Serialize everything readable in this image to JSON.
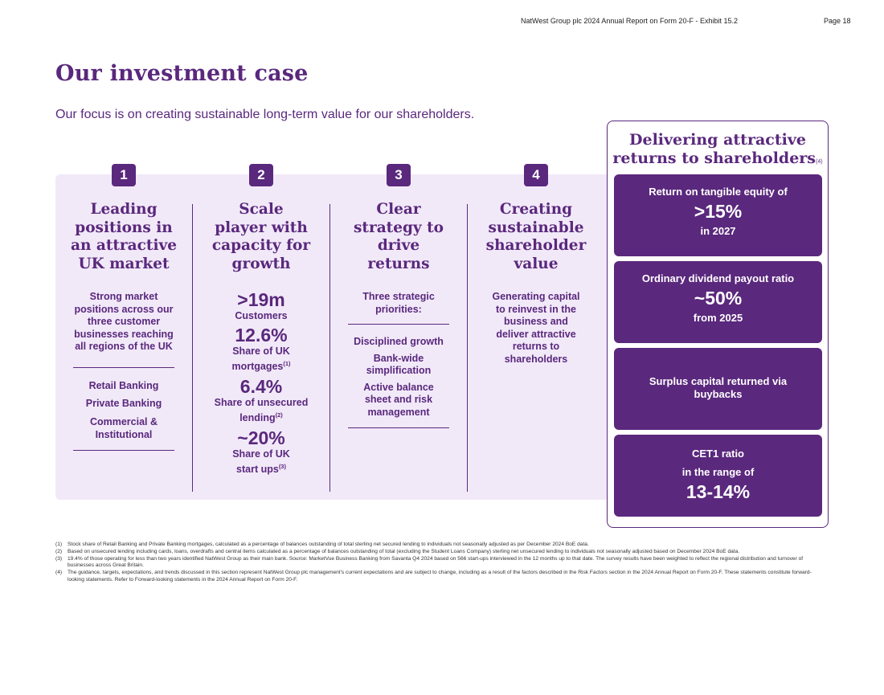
{
  "header": {
    "doc_title": "NatWest Group plc 2024 Annual Report on Form 20-F - Exhibit 15.2",
    "page": "Page 18"
  },
  "title": "Our investment case",
  "subtitle": "Our focus is on creating sustainable long-term value for our shareholders.",
  "columns": [
    {
      "number": "1",
      "title": [
        "Leading",
        "positions in",
        "an attractive",
        "UK market"
      ],
      "desc": [
        "Strong market",
        "positions across our",
        "three customer",
        "businesses reaching",
        "all regions of the UK"
      ],
      "items": [
        "Retail Banking",
        "Private Banking",
        "Commercial &",
        "Institutional"
      ]
    },
    {
      "number": "2",
      "title": [
        "Scale",
        "player with",
        "capacity for",
        "growth"
      ],
      "stats": [
        {
          "value": ">19m",
          "label": "Customers",
          "label2": "",
          "sup": ""
        },
        {
          "value": "12.6%",
          "label": "Share of UK",
          "label2": "mortgages",
          "sup": "(1)"
        },
        {
          "value": "6.4%",
          "label": "Share of unsecured",
          "label2": "lending",
          "sup": "(2)"
        },
        {
          "value": "~20%",
          "label": "Share of UK",
          "label2": "start ups",
          "sup": "(3)"
        }
      ]
    },
    {
      "number": "3",
      "title": [
        "Clear",
        "strategy to",
        "drive",
        "returns"
      ],
      "desc": [
        "Three strategic",
        "priorities:"
      ],
      "items": [
        "Disciplined growth",
        "Bank-wide",
        "simplification",
        "Active balance",
        "sheet and risk",
        "management"
      ]
    },
    {
      "number": "4",
      "title": [
        "Creating",
        "sustainable",
        "shareholder",
        "value"
      ],
      "desc": [
        "Generating capital",
        "to reinvest in the",
        "business and",
        "deliver attractive",
        "returns to",
        "shareholders"
      ]
    }
  ],
  "returns": {
    "title": [
      "Delivering attractive",
      "returns to shareholders"
    ],
    "title_fn": "(4)",
    "cards": [
      {
        "line1": "Return on tangible equity of",
        "big": ">15%",
        "line2": "in 2027"
      },
      {
        "line1": "Ordinary dividend payout ratio",
        "big": "~50%",
        "line2": "from 2025"
      },
      {
        "line1": "Surplus capital returned via",
        "line2": "buybacks"
      },
      {
        "line1": "CET1 ratio",
        "line2": "in the range of",
        "big": "13-14%"
      }
    ]
  },
  "footnotes": [
    {
      "n": "(1)",
      "text": "Stock share of Retail Banking and Private Banking mortgages, calculated as a percentage of balances outstanding of total sterling net secured lending to individuals not seasonally adjusted as per December 2024 BoE data."
    },
    {
      "n": "(2)",
      "text": "Based on unsecured lending including cards, loans, overdrafts and central items calculated as a percentage of balances outstanding of total (excluding the Student Loans Company) sterling net unsecured lending to individuals not seasonally adjusted based on December 2024 BoE data."
    },
    {
      "n": "(3)",
      "text": "19.4% of those operating for less than two years identified NatWest Group as their main bank. Source: MarketVue Business Banking from Savanta Q4 2024 based on 566 start-ups interviewed in the 12 months up to that date. The survey results have been weighted to reflect the regional distribution and turnover of businesses across Great Britain."
    },
    {
      "n": "(4)",
      "text": "The guidance, targets, expectations, and trends discussed in this section represent NatWest Group plc management's current expectations and are subject to change, including as a result of the factors described in the Risk Factors section in the 2024 Annual Report on Form 20-F. These statements constitute forward-looking statements. Refer to Forward-looking statements in the 2024 Annual Report on Form 20-F."
    }
  ]
}
